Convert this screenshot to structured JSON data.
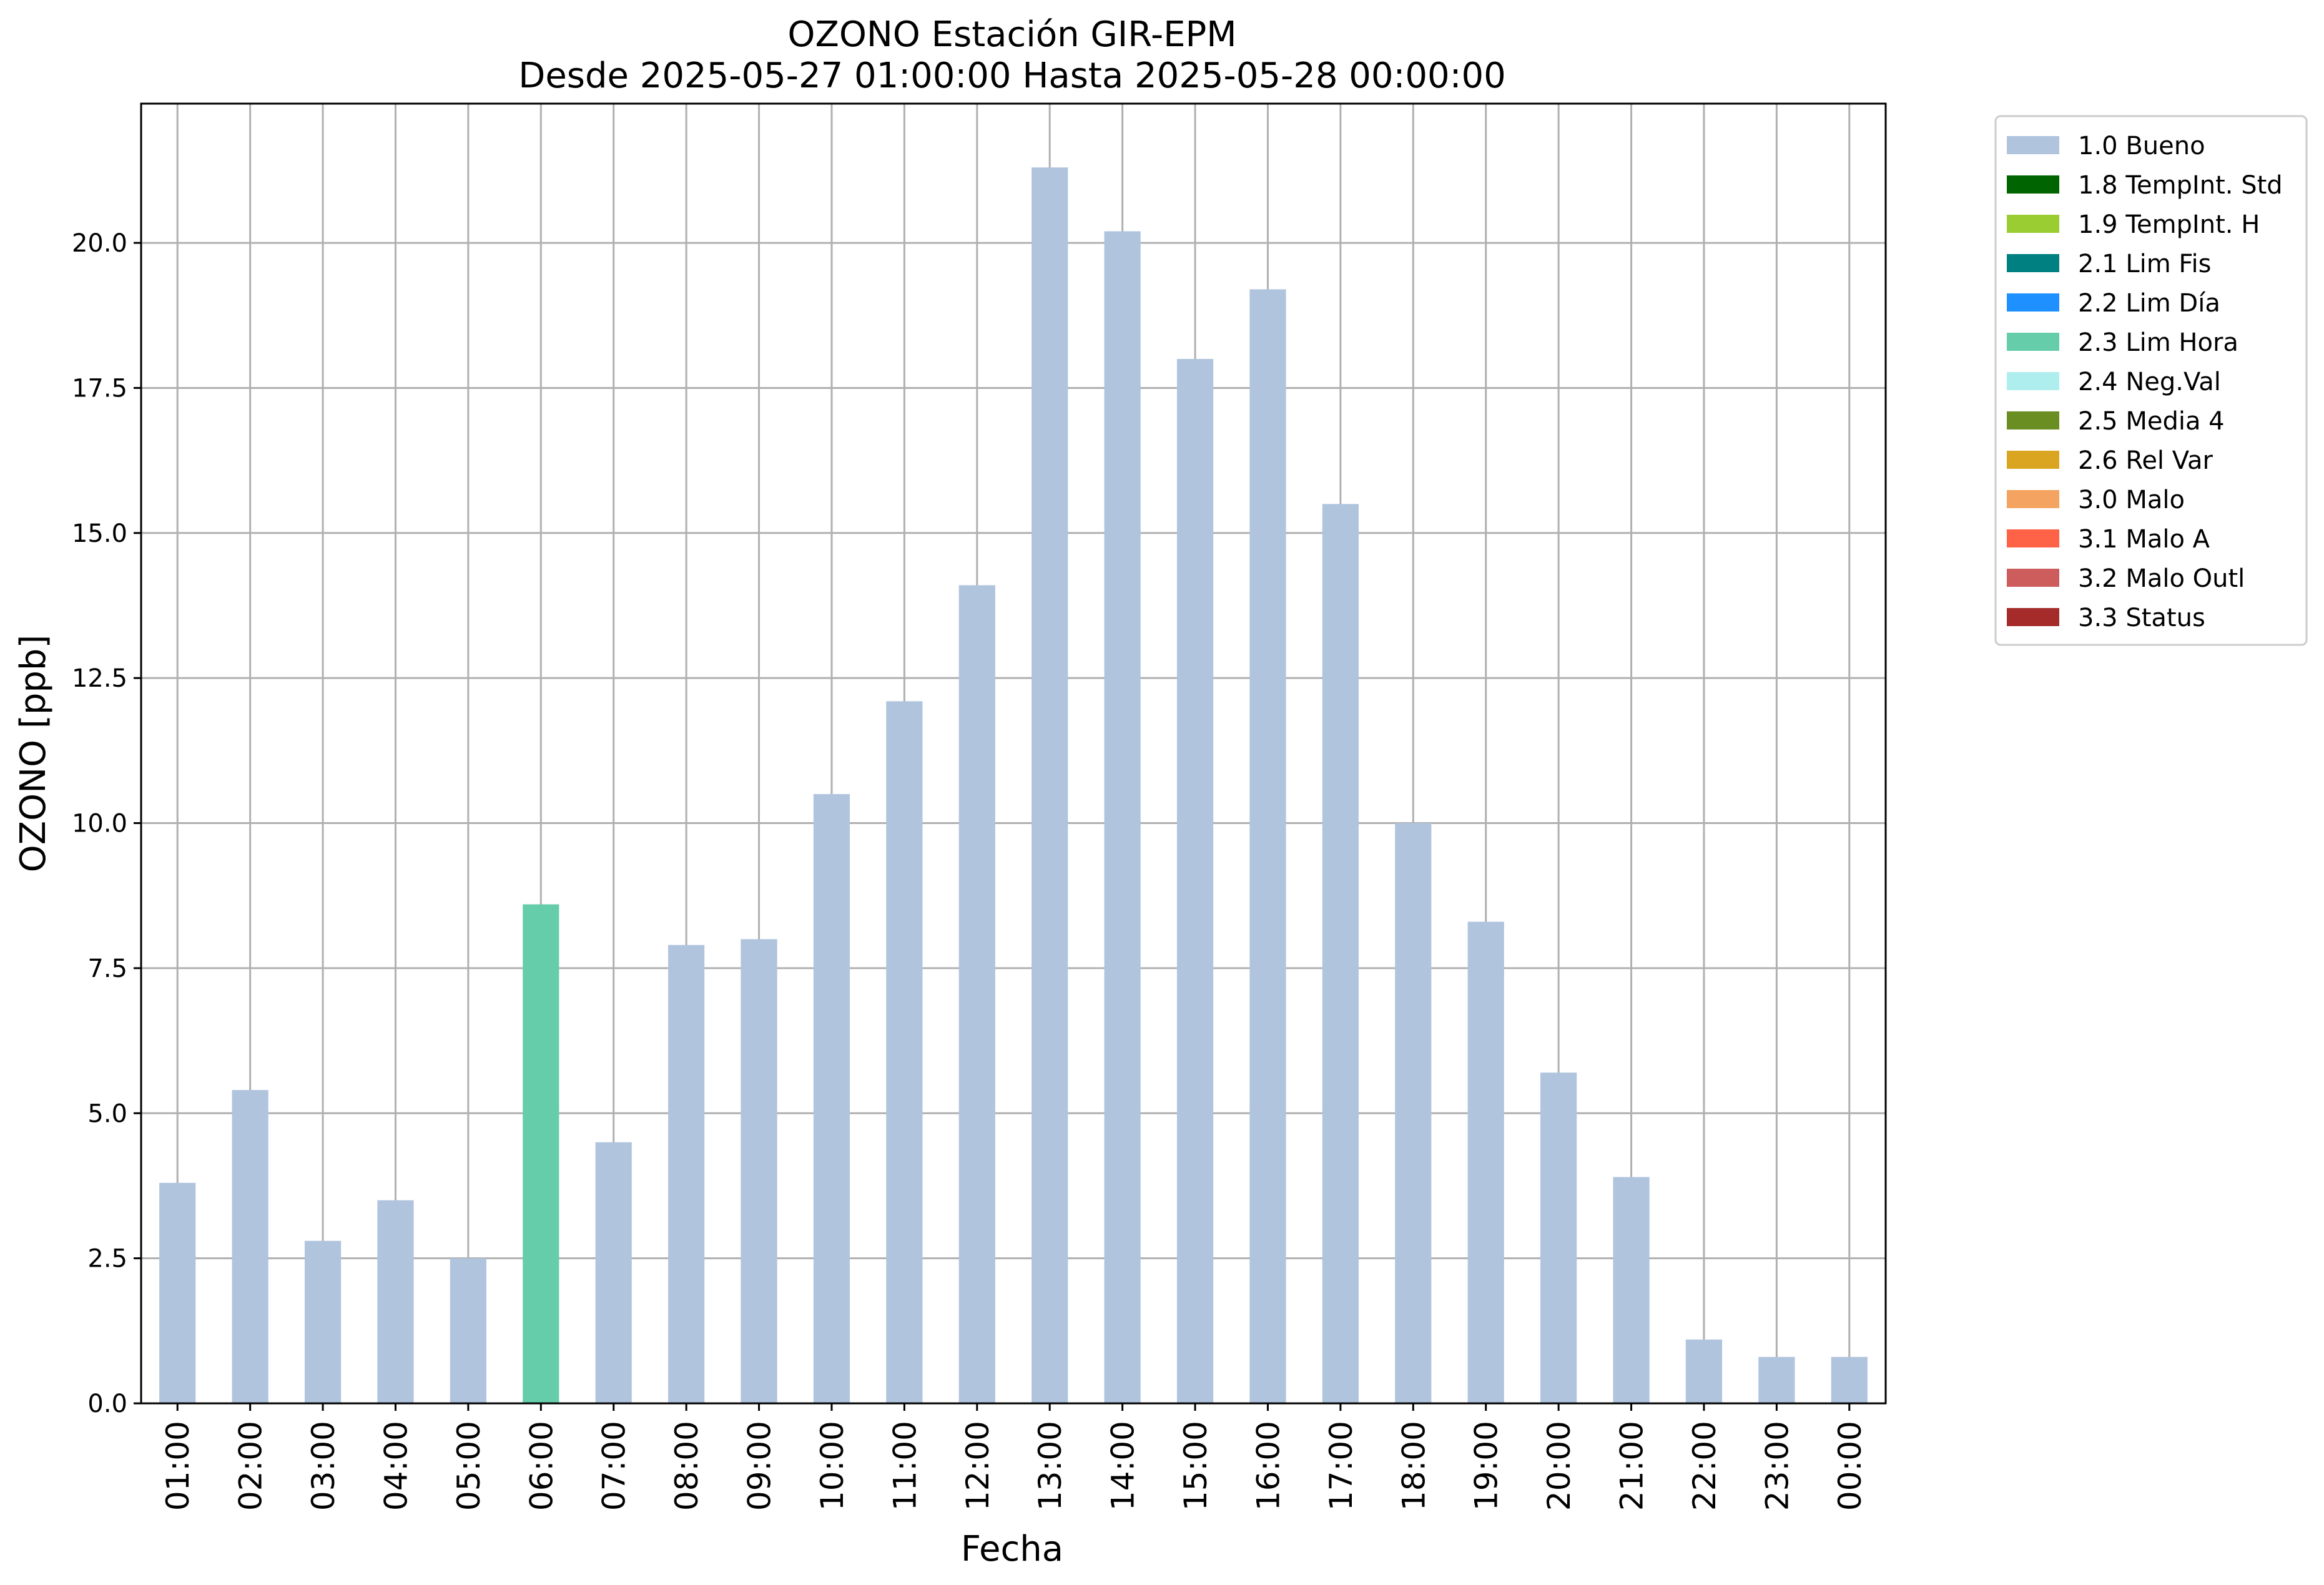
{
  "chart_data": {
    "type": "bar",
    "title": "OZONO Estación GIR-EPM",
    "subtitle": "Desde 2025-05-27 01:00:00 Hasta 2025-05-28 00:00:00",
    "xlabel": "Fecha",
    "ylabel": "OZONO [ppb]",
    "ylim": [
      0,
      22.4
    ],
    "yticks": [
      0.0,
      2.5,
      5.0,
      7.5,
      10.0,
      12.5,
      15.0,
      17.5,
      20.0
    ],
    "ytick_labels": [
      "0.0",
      "2.5",
      "5.0",
      "7.5",
      "10.0",
      "12.5",
      "15.0",
      "17.5",
      "20.0"
    ],
    "grid": true,
    "legend_position": "outside-top-right",
    "categories": [
      "01:00",
      "02:00",
      "03:00",
      "04:00",
      "05:00",
      "06:00",
      "07:00",
      "08:00",
      "09:00",
      "10:00",
      "11:00",
      "12:00",
      "13:00",
      "14:00",
      "15:00",
      "16:00",
      "17:00",
      "18:00",
      "19:00",
      "20:00",
      "21:00",
      "22:00",
      "23:00",
      "00:00"
    ],
    "values": [
      3.8,
      5.4,
      2.8,
      3.5,
      2.5,
      8.6,
      4.5,
      7.9,
      8.0,
      10.5,
      12.1,
      14.1,
      21.3,
      20.2,
      18.0,
      19.2,
      15.5,
      10.0,
      8.3,
      5.7,
      3.9,
      1.1,
      0.8,
      0.8
    ],
    "flags": [
      "1.0 Bueno",
      "1.0 Bueno",
      "1.0 Bueno",
      "1.0 Bueno",
      "1.0 Bueno",
      "2.3 Lim Hora",
      "1.0 Bueno",
      "1.0 Bueno",
      "1.0 Bueno",
      "1.0 Bueno",
      "1.0 Bueno",
      "1.0 Bueno",
      "1.0 Bueno",
      "1.0 Bueno",
      "1.0 Bueno",
      "1.0 Bueno",
      "1.0 Bueno",
      "1.0 Bueno",
      "1.0 Bueno",
      "1.0 Bueno",
      "1.0 Bueno",
      "1.0 Bueno",
      "1.0 Bueno",
      "1.0 Bueno"
    ],
    "legend": [
      {
        "label": "1.0 Bueno",
        "color": "#b0c4de"
      },
      {
        "label": "1.8 TempInt. Std",
        "color": "#006400"
      },
      {
        "label": "1.9 TempInt. H",
        "color": "#9acd32"
      },
      {
        "label": "2.1 Lim Fis",
        "color": "#008080"
      },
      {
        "label": "2.2 Lim Día",
        "color": "#1e90ff"
      },
      {
        "label": "2.3 Lim Hora",
        "color": "#66cdaa"
      },
      {
        "label": "2.4 Neg.Val",
        "color": "#afeeee"
      },
      {
        "label": "2.5 Media 4",
        "color": "#6b8e23"
      },
      {
        "label": "2.6 Rel Var",
        "color": "#daa520"
      },
      {
        "label": "3.0 Malo",
        "color": "#f4a460"
      },
      {
        "label": "3.1 Malo A",
        "color": "#ff6347"
      },
      {
        "label": "3.2 Malo Outl",
        "color": "#cd5c5c"
      },
      {
        "label": "3.3 Status",
        "color": "#a52a2a"
      }
    ]
  }
}
